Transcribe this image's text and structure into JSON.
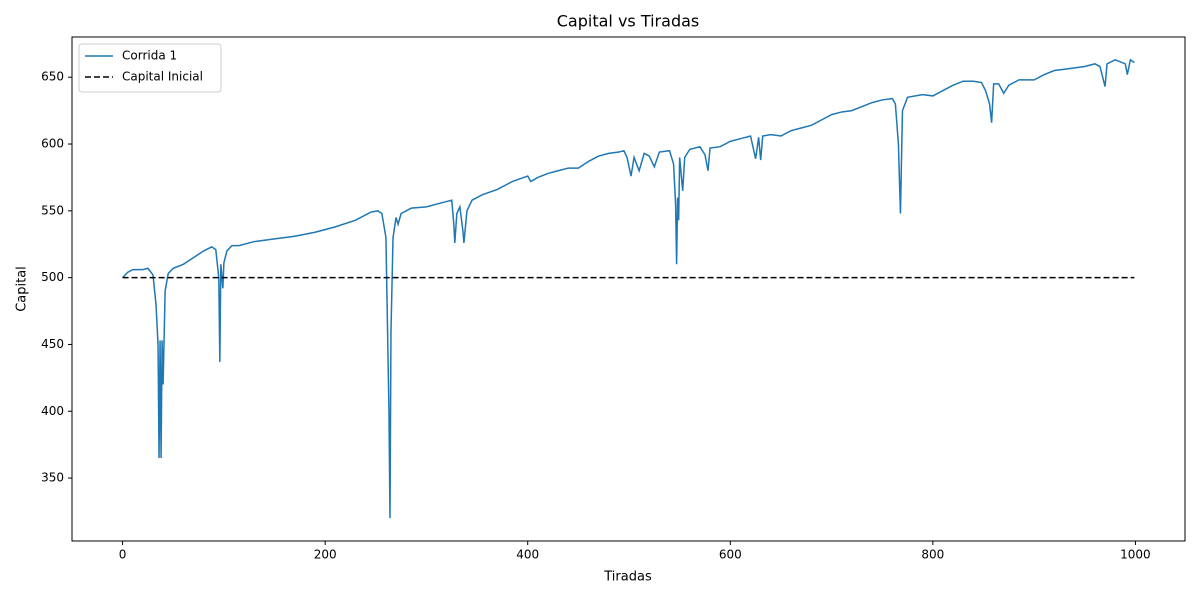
{
  "chart_data": {
    "type": "line",
    "title": "Capital vs Tiradas",
    "x_label": "Tiradas",
    "y_label": "Capital",
    "xlim": [
      -49.95,
      1048.95
    ],
    "ylim": [
      302.9,
      680.1
    ],
    "xticks": [
      0,
      200,
      400,
      600,
      800,
      1000
    ],
    "yticks": [
      350,
      400,
      450,
      500,
      550,
      600,
      650
    ],
    "legend": "upper left",
    "series": [
      {
        "name": "Corrida 1",
        "color": "#1f77b4",
        "dash": "solid",
        "x": [
          0,
          5,
          10,
          20,
          25,
          30,
          33,
          35,
          36,
          37,
          38,
          39,
          40,
          42,
          45,
          50,
          60,
          70,
          80,
          88,
          92,
          95,
          96,
          97,
          99,
          100,
          103,
          108,
          115,
          130,
          150,
          170,
          190,
          210,
          230,
          245,
          252,
          256,
          260,
          263,
          264,
          265,
          267,
          270,
          272,
          275,
          285,
          300,
          315,
          325,
          327,
          328,
          330,
          333,
          336,
          337,
          340,
          345,
          355,
          370,
          385,
          400,
          403,
          410,
          420,
          430,
          440,
          450,
          460,
          470,
          480,
          490,
          495,
          498,
          502,
          505,
          510,
          515,
          520,
          525,
          530,
          540,
          544,
          546,
          547,
          548,
          549,
          550,
          553,
          555,
          560,
          570,
          575,
          578,
          580,
          590,
          600,
          610,
          620,
          625,
          628,
          630,
          632,
          640,
          650,
          660,
          670,
          680,
          690,
          700,
          710,
          720,
          730,
          740,
          750,
          760,
          763,
          766,
          768,
          770,
          775,
          790,
          800,
          810,
          820,
          830,
          840,
          848,
          852,
          856,
          858,
          860,
          865,
          870,
          875,
          885,
          900,
          910,
          920,
          930,
          940,
          950,
          960,
          965,
          970,
          972,
          980,
          990,
          992,
          995,
          999
        ],
        "values": [
          500,
          504,
          506,
          506,
          507,
          502,
          480,
          450,
          365,
          453,
          365,
          453,
          420,
          490,
          503,
          507,
          510,
          515,
          520,
          523,
          521,
          500,
          437,
          510,
          492,
          511,
          520,
          524,
          524,
          527,
          529,
          531,
          534,
          538,
          543,
          549,
          550,
          548,
          530,
          400,
          320,
          460,
          530,
          545,
          540,
          548,
          552,
          553,
          556,
          558,
          540,
          526,
          548,
          553,
          535,
          526,
          550,
          558,
          562,
          566,
          572,
          576,
          572,
          575,
          578,
          580,
          582,
          582,
          587,
          591,
          593,
          594,
          595,
          590,
          576,
          590,
          580,
          593,
          591,
          583,
          594,
          595,
          585,
          555,
          510,
          560,
          543,
          590,
          565,
          590,
          596,
          598,
          592,
          580,
          597,
          598,
          602,
          604,
          606,
          589,
          605,
          588,
          606,
          607,
          606,
          610,
          612,
          614,
          618,
          622,
          624,
          625,
          628,
          631,
          633,
          634,
          630,
          600,
          548,
          625,
          635,
          637,
          636,
          640,
          644,
          647,
          647,
          646,
          640,
          630,
          616,
          645,
          645,
          638,
          644,
          648,
          648,
          652,
          655,
          656,
          657,
          658,
          660,
          658,
          643,
          660,
          663,
          660,
          652,
          663,
          661
        ]
      },
      {
        "name": "Capital Inicial",
        "color": "#000000",
        "dash": "dashed",
        "x": [
          0,
          999
        ],
        "values": [
          500,
          500
        ]
      }
    ]
  }
}
